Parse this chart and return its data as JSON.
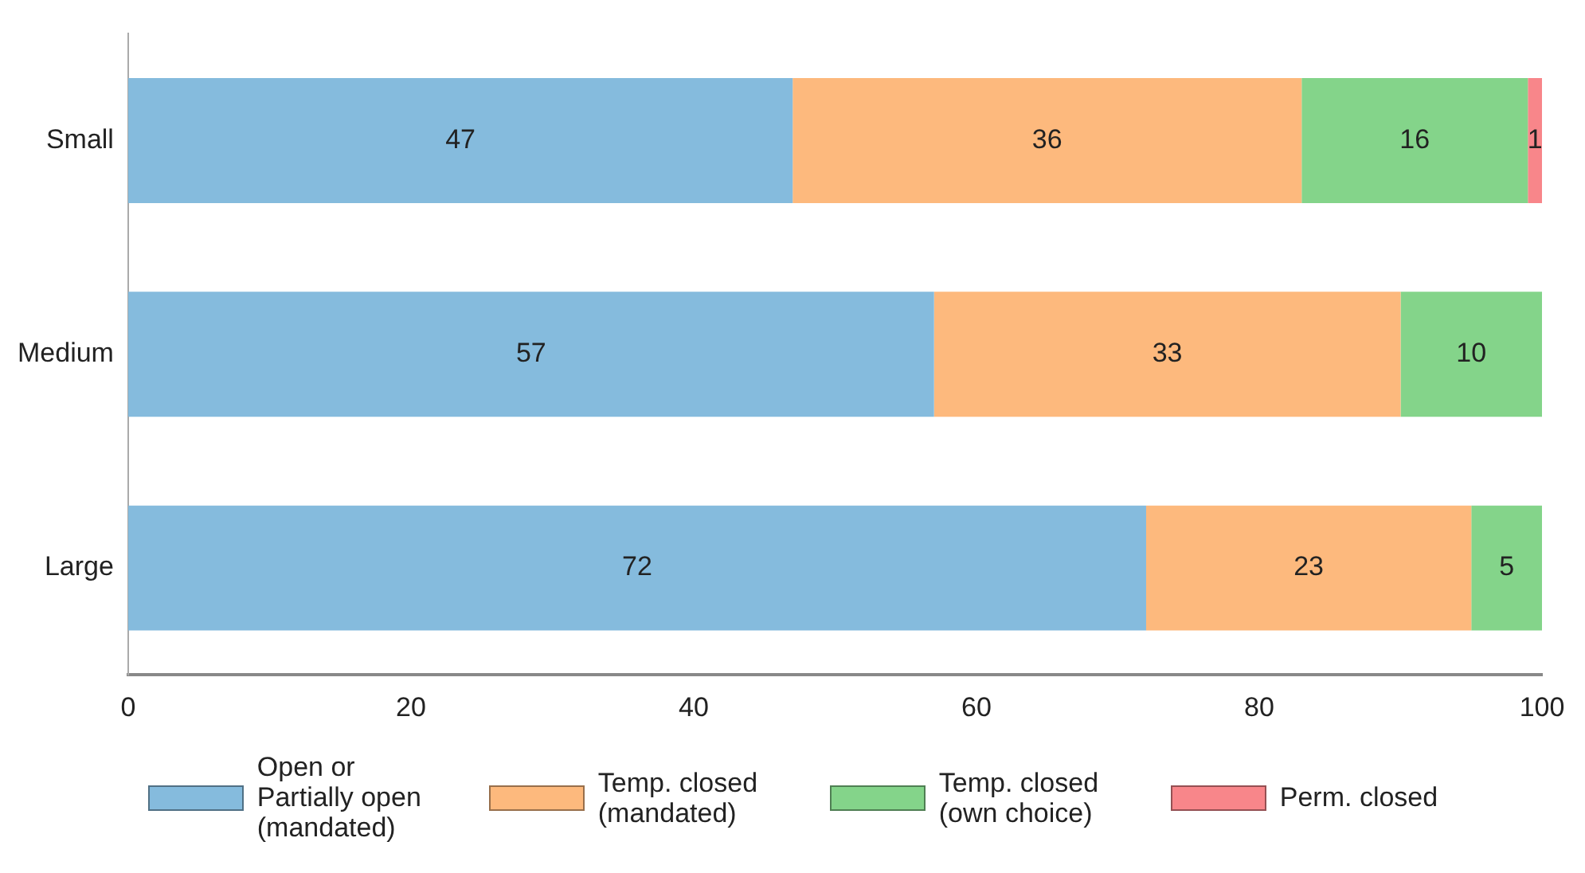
{
  "chart_data": {
    "type": "bar",
    "orientation": "horizontal",
    "stacked": true,
    "categories": [
      "Small",
      "Medium",
      "Large"
    ],
    "series": [
      {
        "name": "Open or Partially open (mandated)",
        "color": "#85bbdd",
        "values": [
          47,
          57,
          72
        ]
      },
      {
        "name": "Temp. closed (mandated)",
        "color": "#fdb97d",
        "values": [
          36,
          33,
          23
        ]
      },
      {
        "name": "Temp. closed (own choice)",
        "color": "#84d48a",
        "values": [
          16,
          10,
          5
        ]
      },
      {
        "name": "Perm. closed",
        "color": "#f8868a",
        "values": [
          1,
          null,
          null
        ]
      }
    ],
    "xlim": [
      0,
      100
    ],
    "xticks": [
      0,
      20,
      40,
      60,
      80,
      100
    ],
    "grid": false,
    "legend": "bottom",
    "data_labels": true
  }
}
